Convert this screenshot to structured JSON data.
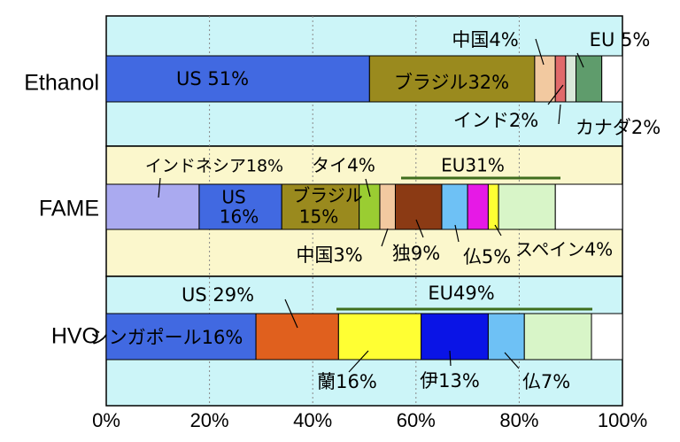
{
  "chart_data": {
    "type": "bar",
    "orientation": "horizontal",
    "stacked": true,
    "xlim": [
      0,
      100
    ],
    "x_ticks": [
      "0%",
      "20%",
      "40%",
      "60%",
      "80%",
      "100%"
    ],
    "grid": true,
    "categories": [
      {
        "name": "Ethanol",
        "segments": [
          {
            "value": 51,
            "color": "#4169e1"
          },
          {
            "value": 32,
            "color": "#9a8a1e"
          },
          {
            "value": 4,
            "color": "#f2c9a0"
          },
          {
            "value": 2,
            "color": "#e06a6a"
          },
          {
            "value": 2,
            "color": "#d9e8d9"
          },
          {
            "value": 5,
            "color": "#5f9c6c"
          }
        ],
        "labels": [
          {
            "text": "US 51%",
            "color": "#ffff66"
          },
          {
            "text": "ブラジル32%",
            "color": "#000000"
          },
          {
            "text": "中国4%",
            "color": "#000000"
          },
          {
            "text": "EU 5%",
            "color": "#3f6e1e"
          },
          {
            "text": "インド2%",
            "color": "#000000"
          },
          {
            "text": "カナダ2%",
            "color": "#000000"
          }
        ]
      },
      {
        "name": "FAME",
        "segments": [
          {
            "value": 18,
            "color": "#aaaaf0"
          },
          {
            "value": 16,
            "color": "#4169e1"
          },
          {
            "value": 15,
            "color": "#9a8a1e"
          },
          {
            "value": 4,
            "color": "#9acd32"
          },
          {
            "value": 3,
            "color": "#f2c9a0"
          },
          {
            "value": 9,
            "color": "#8b3a14"
          },
          {
            "value": 5,
            "color": "#6ec1f5"
          },
          {
            "value": 4,
            "color": "#e619e6"
          },
          {
            "value": 2,
            "color": "#ffff33"
          },
          {
            "value": 11,
            "color": "#d8f5c8"
          }
        ],
        "labels": [
          {
            "text": "インドネシア18%",
            "color": "#000000"
          },
          {
            "text": "US",
            "color": "#ffff66"
          },
          {
            "text": "16%",
            "color": "#ffff66"
          },
          {
            "text": "ブラジル",
            "color": "#000000"
          },
          {
            "text": "15%",
            "color": "#000000"
          },
          {
            "text": "タイ4%",
            "color": "#000000"
          },
          {
            "text": "EU31%",
            "color": "#3f6e1e"
          },
          {
            "text": "中国3%",
            "color": "#000000"
          },
          {
            "text": "独9%",
            "color": "#000000"
          },
          {
            "text": "仏5%",
            "color": "#000000"
          },
          {
            "text": "スペイン4%",
            "color": "#000000"
          }
        ]
      },
      {
        "name": "HVO",
        "segments": [
          {
            "value": 29,
            "color": "#4169e1"
          },
          {
            "value": 16,
            "color": "#e0601e"
          },
          {
            "value": 16,
            "color": "#ffff33"
          },
          {
            "value": 13,
            "color": "#0a14e6"
          },
          {
            "value": 7,
            "color": "#6ec1f5"
          },
          {
            "value": 13,
            "color": "#d8f5c8"
          }
        ],
        "labels": [
          {
            "text": "US 29%",
            "color": "#ffff66"
          },
          {
            "text": "シンガポール16%",
            "color": "#000000"
          },
          {
            "text": "EU49%",
            "color": "#3f6e1e"
          },
          {
            "text": "蘭16%",
            "color": "#000000"
          },
          {
            "text": "伊13%",
            "color": "#000000"
          },
          {
            "text": "仏7%",
            "color": "#000000"
          }
        ]
      }
    ],
    "bands": [
      "#ccf5f8",
      "#fbf7cc",
      "#ccf5f8"
    ],
    "eu_bracket_color": "#3f6e1e"
  }
}
